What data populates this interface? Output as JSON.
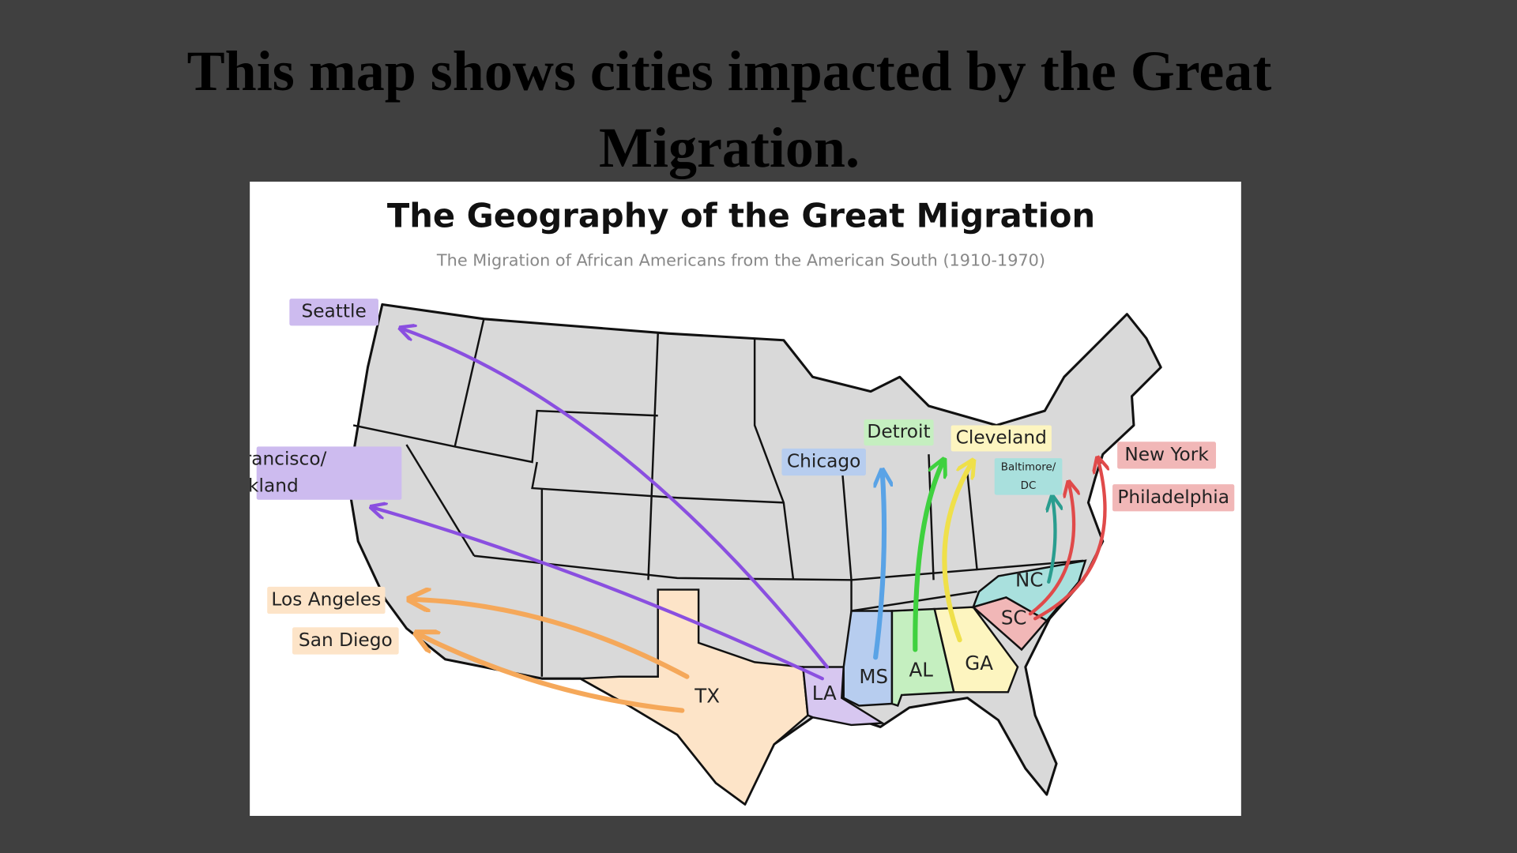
{
  "slide": {
    "title": "This map shows cities impacted by the Great Migration."
  },
  "map": {
    "title": "The Geography of the Great Migration",
    "subtitle": "The Migration of African Americans from the American South (1910-1970)",
    "cities": [
      {
        "label": "Seattle"
      },
      {
        "lines": [
          "San Francisco/",
          "Oakland"
        ]
      },
      {
        "label": "Los Angeles"
      },
      {
        "label": "San Diego"
      },
      {
        "label": "Chicago"
      },
      {
        "label": "Detroit"
      },
      {
        "label": "Cleveland"
      },
      {
        "lines": [
          "Baltimore/",
          "DC"
        ]
      },
      {
        "label": "New York"
      },
      {
        "label": "Philadelphia"
      }
    ],
    "states": [
      "TX",
      "LA",
      "MS",
      "AL",
      "GA",
      "NC",
      "SC"
    ]
  }
}
